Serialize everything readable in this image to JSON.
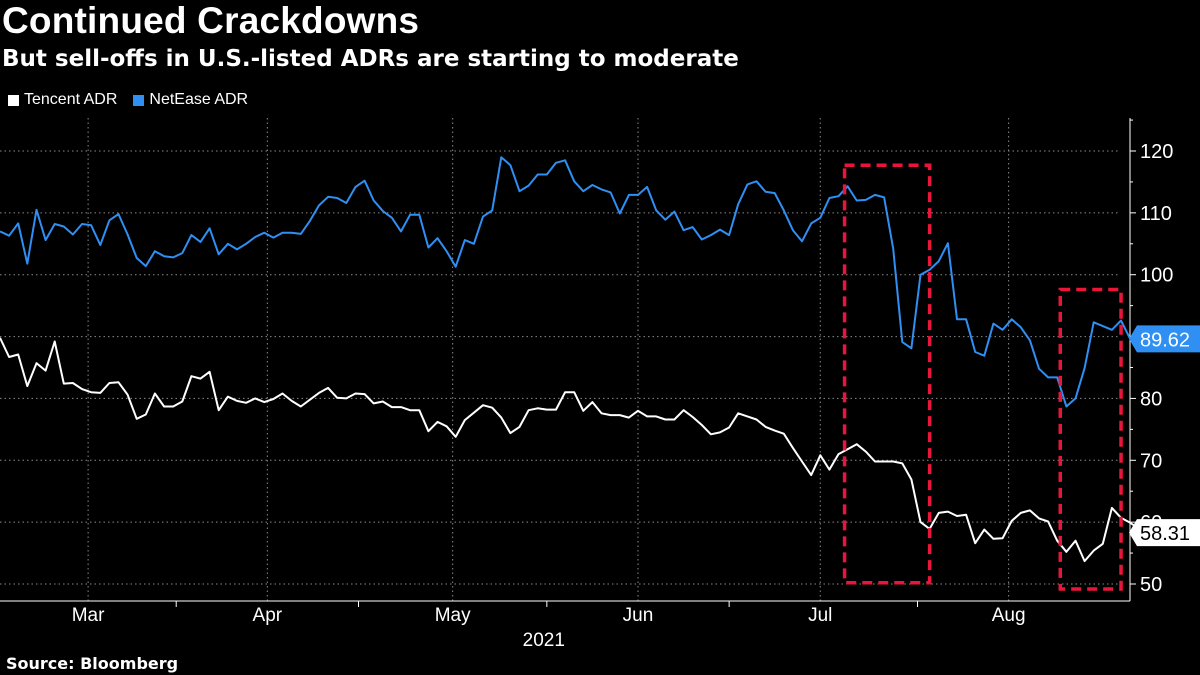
{
  "title": "Continued Crackdowns",
  "subtitle": "But sell-offs in U.S.-listed ADRs are starting to moderate",
  "source": "Source: Bloomberg",
  "colors": {
    "tencent": "#ffffff",
    "netease": "#2f8ff2",
    "highlight": "#e8163b",
    "grid": "#8a8a8a",
    "axis": "#ffffff"
  },
  "chart_data": {
    "type": "line",
    "title": "Continued Crackdowns",
    "subtitle": "But sell-offs in U.S.-listed ADRs are starting to moderate",
    "xlabel": "2021",
    "ylabel": "",
    "ylim": [
      48,
      126
    ],
    "yticks": [
      50,
      60,
      70,
      80,
      90,
      100,
      110,
      120
    ],
    "x_range": [
      0,
      184
    ],
    "month_ticks": [
      {
        "label": "Mar",
        "center": 14.5
      },
      {
        "label": "Apr",
        "center": 44
      },
      {
        "label": "May",
        "center": 74.5
      },
      {
        "label": "Jun",
        "center": 105
      },
      {
        "label": "Jul",
        "center": 135
      },
      {
        "label": "Aug",
        "center": 166
      }
    ],
    "month_boundaries": [
      29,
      59,
      90,
      120,
      151
    ],
    "year_label": "2021",
    "legend": [
      "Tencent ADR",
      "NetEase ADR"
    ],
    "last_value_labels": [
      {
        "series": "NetEase ADR",
        "value": "89.62"
      },
      {
        "series": "Tencent ADR",
        "value": "58.31"
      }
    ],
    "highlight_boxes": [
      {
        "x_start": 139,
        "x_end": 153,
        "y_low": 50.2,
        "y_high": 117.7
      },
      {
        "x_start": 174.5,
        "x_end": 184.5,
        "y_low": 49.2,
        "y_high": 97.6
      }
    ],
    "series": [
      {
        "name": "NetEase ADR",
        "points": [
          [
            0,
            107
          ],
          [
            1.5,
            106.3
          ],
          [
            3,
            108.3
          ],
          [
            4.5,
            101.8
          ],
          [
            6,
            110.5
          ],
          [
            7.5,
            105.6
          ],
          [
            9,
            108.2
          ],
          [
            10.5,
            107.8
          ],
          [
            12,
            106.5
          ],
          [
            13.5,
            108.2
          ],
          [
            15,
            108
          ],
          [
            16.5,
            104.8
          ],
          [
            18,
            108.8
          ],
          [
            19.5,
            109.8
          ],
          [
            21,
            106.5
          ],
          [
            22.5,
            102.7
          ],
          [
            24,
            101.4
          ],
          [
            25.5,
            103.8
          ],
          [
            27,
            103
          ],
          [
            28.5,
            102.8
          ],
          [
            30,
            103.5
          ],
          [
            31.5,
            106.4
          ],
          [
            33,
            105.3
          ],
          [
            34.5,
            107.5
          ],
          [
            36,
            103.3
          ],
          [
            37.5,
            105
          ],
          [
            39,
            104.1
          ],
          [
            40.5,
            105
          ],
          [
            42,
            106.1
          ],
          [
            43.5,
            106.8
          ],
          [
            45,
            106
          ],
          [
            46.5,
            106.8
          ],
          [
            48,
            106.8
          ],
          [
            49.5,
            106.6
          ],
          [
            51,
            108.7
          ],
          [
            52.5,
            111.2
          ],
          [
            54,
            112.6
          ],
          [
            55.5,
            112.4
          ],
          [
            57,
            111.6
          ],
          [
            58.5,
            114.2
          ],
          [
            60,
            115.2
          ],
          [
            61.5,
            112
          ],
          [
            63,
            110.3
          ],
          [
            64.5,
            109.2
          ],
          [
            66,
            107
          ],
          [
            67.5,
            109.7
          ],
          [
            69,
            109.7
          ],
          [
            70.5,
            104.4
          ],
          [
            72,
            105.9
          ],
          [
            73.5,
            103.8
          ],
          [
            75,
            101.3
          ],
          [
            76.5,
            105.6
          ],
          [
            78,
            105
          ],
          [
            79.5,
            109.4
          ],
          [
            81,
            110.4
          ],
          [
            82.5,
            119
          ],
          [
            84,
            117.7
          ],
          [
            85.5,
            113.5
          ],
          [
            87,
            114.4
          ],
          [
            88.5,
            116.2
          ],
          [
            90,
            116.2
          ],
          [
            91.5,
            118.1
          ],
          [
            93,
            118.5
          ],
          [
            94.5,
            115.1
          ],
          [
            96,
            113.5
          ],
          [
            97.5,
            114.5
          ],
          [
            99,
            113.8
          ],
          [
            100.5,
            113.3
          ],
          [
            102,
            109.9
          ],
          [
            103.5,
            112.9
          ],
          [
            105,
            112.9
          ],
          [
            106.5,
            114.2
          ],
          [
            108,
            110.4
          ],
          [
            109.5,
            108.9
          ],
          [
            111,
            110.2
          ],
          [
            112.5,
            107.2
          ],
          [
            114,
            107.7
          ],
          [
            115.5,
            105.7
          ],
          [
            117,
            106.4
          ],
          [
            118.5,
            107.3
          ],
          [
            120,
            106.4
          ],
          [
            121.5,
            111.4
          ],
          [
            123,
            114.6
          ],
          [
            124.5,
            115.1
          ],
          [
            126,
            113.4
          ],
          [
            127.5,
            113.2
          ],
          [
            129,
            110.4
          ],
          [
            130.5,
            107.2
          ],
          [
            132,
            105.4
          ],
          [
            133.5,
            108.3
          ],
          [
            135,
            109.2
          ],
          [
            136.5,
            112.4
          ],
          [
            138,
            112.7
          ],
          [
            139.5,
            114.3
          ],
          [
            141,
            112
          ],
          [
            142.5,
            112.1
          ],
          [
            144,
            112.9
          ],
          [
            145.5,
            112.5
          ],
          [
            147,
            104.2
          ],
          [
            148.5,
            89.1
          ],
          [
            150,
            88.1
          ],
          [
            151.5,
            100
          ],
          [
            153,
            100.8
          ],
          [
            154.5,
            102.2
          ],
          [
            156,
            105.1
          ],
          [
            157.5,
            92.8
          ],
          [
            159,
            92.8
          ],
          [
            160.5,
            87.5
          ],
          [
            162,
            86.9
          ],
          [
            163.5,
            92.1
          ],
          [
            165,
            91.1
          ],
          [
            166.5,
            92.8
          ],
          [
            168,
            91.5
          ],
          [
            169.5,
            89.4
          ],
          [
            171,
            84.8
          ],
          [
            172.5,
            83.4
          ],
          [
            174,
            83.4
          ],
          [
            175.5,
            78.7
          ],
          [
            177,
            80
          ],
          [
            178.5,
            84.9
          ],
          [
            180,
            92.3
          ],
          [
            181.5,
            91.7
          ],
          [
            183,
            91.1
          ],
          [
            184.5,
            92.6
          ],
          [
            186,
            89.62
          ]
        ]
      },
      {
        "name": "Tencent ADR",
        "points": [
          [
            0,
            89.8
          ],
          [
            1.5,
            86.7
          ],
          [
            3,
            87.1
          ],
          [
            4.5,
            82
          ],
          [
            6,
            85.7
          ],
          [
            7.5,
            84.5
          ],
          [
            9,
            89.2
          ],
          [
            10.5,
            82.4
          ],
          [
            12,
            82.5
          ],
          [
            13.5,
            81.5
          ],
          [
            15,
            81
          ],
          [
            16.5,
            80.9
          ],
          [
            18,
            82.5
          ],
          [
            19.5,
            82.6
          ],
          [
            21,
            80.6
          ],
          [
            22.5,
            76.7
          ],
          [
            24,
            77.4
          ],
          [
            25.5,
            80.8
          ],
          [
            27,
            78.7
          ],
          [
            28.5,
            78.7
          ],
          [
            30,
            79.5
          ],
          [
            31.5,
            83.6
          ],
          [
            33,
            83.2
          ],
          [
            34.5,
            84.3
          ],
          [
            36,
            78.1
          ],
          [
            37.5,
            80.3
          ],
          [
            39,
            79.6
          ],
          [
            40.5,
            79.3
          ],
          [
            42,
            80
          ],
          [
            43.5,
            79.4
          ],
          [
            45,
            79.9
          ],
          [
            46.5,
            80.8
          ],
          [
            48,
            79.6
          ],
          [
            49.5,
            78.7
          ],
          [
            51,
            79.8
          ],
          [
            52.5,
            80.9
          ],
          [
            54,
            81.7
          ],
          [
            55.5,
            80.1
          ],
          [
            57,
            80
          ],
          [
            58.5,
            80.8
          ],
          [
            60,
            80.7
          ],
          [
            61.5,
            79.2
          ],
          [
            63,
            79.5
          ],
          [
            64.5,
            78.6
          ],
          [
            66,
            78.6
          ],
          [
            67.5,
            78.1
          ],
          [
            69,
            78.1
          ],
          [
            70.5,
            74.7
          ],
          [
            72,
            76.2
          ],
          [
            73.5,
            75.5
          ],
          [
            75,
            73.8
          ],
          [
            76.5,
            76.5
          ],
          [
            78,
            77.7
          ],
          [
            79.5,
            78.9
          ],
          [
            81,
            78.5
          ],
          [
            82.5,
            76.9
          ],
          [
            84,
            74.4
          ],
          [
            85.5,
            75.4
          ],
          [
            87,
            78.1
          ],
          [
            88.5,
            78.4
          ],
          [
            90,
            78.2
          ],
          [
            91.5,
            78.2
          ],
          [
            93,
            81
          ],
          [
            94.5,
            81
          ],
          [
            96,
            78
          ],
          [
            97.5,
            79.4
          ],
          [
            99,
            77.6
          ],
          [
            100.5,
            77.3
          ],
          [
            102,
            77.3
          ],
          [
            103.5,
            76.9
          ],
          [
            105,
            78
          ],
          [
            106.5,
            77.1
          ],
          [
            108,
            77.1
          ],
          [
            109.5,
            76.6
          ],
          [
            111,
            76.6
          ],
          [
            112.5,
            78.1
          ],
          [
            114,
            77
          ],
          [
            115.5,
            75.7
          ],
          [
            117,
            74.2
          ],
          [
            118.5,
            74.5
          ],
          [
            120,
            75.3
          ],
          [
            121.5,
            77.6
          ],
          [
            123,
            77.1
          ],
          [
            124.5,
            76.6
          ],
          [
            126,
            75.4
          ],
          [
            127.5,
            74.8
          ],
          [
            129,
            74.3
          ],
          [
            130.5,
            72
          ],
          [
            132,
            69.8
          ],
          [
            133.5,
            67.6
          ],
          [
            135,
            70.8
          ],
          [
            136.5,
            68.5
          ],
          [
            138,
            71
          ],
          [
            139.5,
            71.8
          ],
          [
            141,
            72.6
          ],
          [
            142.5,
            71.4
          ],
          [
            144,
            69.8
          ],
          [
            145.5,
            69.8
          ],
          [
            147,
            69.8
          ],
          [
            148.5,
            69.5
          ],
          [
            150,
            66.9
          ],
          [
            151.5,
            60
          ],
          [
            153,
            58.9
          ],
          [
            154.5,
            61.5
          ],
          [
            156,
            61.7
          ],
          [
            157.5,
            61
          ],
          [
            159,
            61.2
          ],
          [
            160.5,
            56.6
          ],
          [
            162,
            58.8
          ],
          [
            163.5,
            57.3
          ],
          [
            165,
            57.4
          ],
          [
            166.5,
            60.2
          ],
          [
            168,
            61.5
          ],
          [
            169.5,
            61.9
          ],
          [
            171,
            60.6
          ],
          [
            172.5,
            60.1
          ],
          [
            174,
            57
          ],
          [
            175.5,
            55.2
          ],
          [
            177,
            57
          ],
          [
            178.5,
            53.7
          ],
          [
            180,
            55.4
          ],
          [
            181.5,
            56.5
          ],
          [
            183,
            62.3
          ],
          [
            184.5,
            60.7
          ],
          [
            186,
            59.9
          ],
          [
            187.5,
            58.9
          ],
          [
            189,
            58.31
          ]
        ]
      }
    ]
  }
}
